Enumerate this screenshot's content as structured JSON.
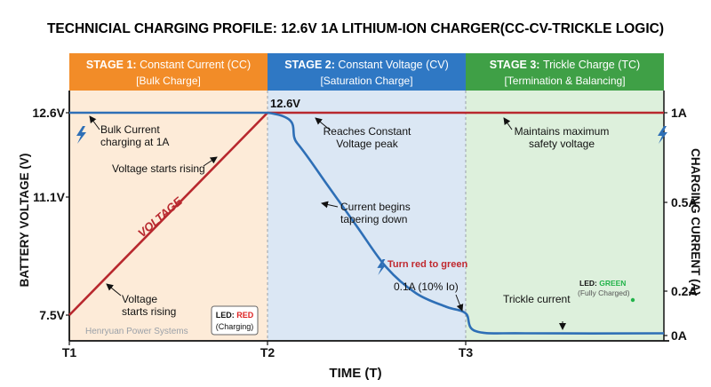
{
  "chart_data": {
    "type": "line",
    "title": "TECHNICIAL CHARGING PROFILE: 12.6V 1A LITHIUM-ION CHARGER(CC-CV-TRICKLE LOGIC)",
    "xlabel": "TIME (T)",
    "ylabel_left": "BATTERY VOLTAGE (V)",
    "ylabel_right": "CHARGING CURRENT (A)",
    "x_ticks": [
      "T1",
      "T2",
      "T3"
    ],
    "y_left_ticks": [
      {
        "label": "12.6V",
        "value": 12.6
      },
      {
        "label": "11.1V",
        "value": 11.1
      },
      {
        "label": "7.5V",
        "value": 7.5
      }
    ],
    "y_right_ticks": [
      {
        "label": "1A",
        "value": 1.0
      },
      {
        "label": "0.5A",
        "value": 0.5
      },
      {
        "label": "0.2A",
        "value": 0.2
      },
      {
        "label": "0A",
        "value": 0.0
      }
    ],
    "stages": [
      {
        "name": "STAGE 1:",
        "title": "Constant Current (CC)",
        "sub": "[Bulk Charge]",
        "color": "#f28c28",
        "bg": "#fdebd8",
        "start": 0,
        "end": 1
      },
      {
        "name": "STAGE 2:",
        "title": "Constant Voltage (CV)",
        "sub": "[Saturation Charge]",
        "color": "#2f78c4",
        "bg": "#dbe7f4",
        "start": 1,
        "end": 2
      },
      {
        "name": "STAGE 3:",
        "title": "Trickle Charge (TC)",
        "sub": "[Termination & Balancing]",
        "color": "#3fa046",
        "bg": "#ddf0dc",
        "start": 2,
        "end": 3
      }
    ],
    "series": [
      {
        "name": "VOLTAGE",
        "axis": "left",
        "color": "#b8282e",
        "points": [
          [
            0,
            7.5
          ],
          [
            1,
            12.6
          ],
          [
            3,
            12.6
          ]
        ]
      },
      {
        "axis": "right",
        "color": "#2e6fb6",
        "points": [
          [
            0,
            1.0
          ],
          [
            1,
            1.0
          ],
          [
            1.15,
            0.83
          ],
          [
            1.3,
            0.6
          ],
          [
            1.45,
            0.42
          ],
          [
            1.6,
            0.28
          ],
          [
            1.75,
            0.19
          ],
          [
            1.9,
            0.13
          ],
          [
            2.0,
            0.1
          ],
          [
            2.05,
            0.02
          ],
          [
            2.3,
            0.01
          ],
          [
            3,
            0.01
          ]
        ]
      }
    ],
    "annotations": {
      "peak_label": "12.6V",
      "bulk_current": "Bulk Current\ncharging at 1A",
      "voltage_rising_1": "Voltage starts rising",
      "voltage_rising_2": "Voltage\nstarts rising",
      "voltage_line_label": "VOLTAGE",
      "reaches_cv": "Reaches Constant\nVoltage peak",
      "current_tapering": "Current begins\ntapering down",
      "turn_red_green": "Turn red to green",
      "cutoff": "0.1A (10% Io)",
      "maintains": "Maintains maximum\nsafety voltage",
      "trickle": "Trickle current",
      "led_red_prefix": "LED: ",
      "led_red_color": "RED",
      "led_red_sub": "(Charging)",
      "led_green_prefix": "LED: ",
      "led_green_color": "GREEN",
      "led_green_sub": "(Fully Charged)",
      "watermark": "Henryuan Power Systems"
    },
    "grid": false,
    "legend": "none"
  }
}
